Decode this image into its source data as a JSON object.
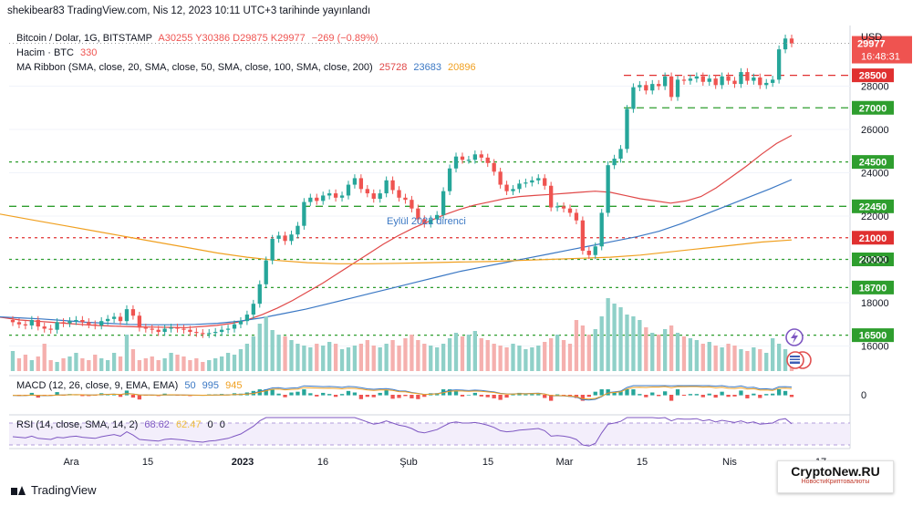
{
  "header": {
    "published": "shekibear83 TradingView.com, Nis 12, 2023 10:11 UTC+3 tarihinde yayınlandı"
  },
  "legend": {
    "symbol": "Bitcoin / Dolar, 1G, BITSTAMP",
    "ohlc": "A30255 Y30386 D29875 K29977",
    "change": "−269 (−0.89%)",
    "volume_label": "Hacim · BTC",
    "volume_value": "330",
    "ma_label": "MA Ribbon (SMA, close, 20, SMA, close, 50, SMA, close, 100, SMA, close, 200)",
    "ma_20": "25728",
    "ma_50": "23683",
    "ma_100": "20896",
    "macd_label": "MACD (12, 26, close, 9, EMA, EMA)",
    "macd_v1": "50",
    "macd_v2": "995",
    "macd_v3": "945",
    "rsi_label": "RSI (14, close, SMA, 14, 2)",
    "rsi_v1": "68.62",
    "rsi_v2": "62.47",
    "rsi_v3": "0",
    "rsi_v4": "0"
  },
  "axis": {
    "currency": "USD",
    "macd_zero": "0"
  },
  "annotation": "Eylül 2022 direnci",
  "footer": {
    "brand": "TradingView"
  },
  "watermark": {
    "site": "CryptoNew.RU",
    "tagline": "НовостиКриптовалюты"
  },
  "colors": {
    "up": "#26a69a",
    "down": "#ef5350",
    "ma20": "#e04848",
    "ma50": "#3b78c4",
    "ma100": "#f0a020",
    "level_green": "#2e9e2e",
    "level_red": "#e03030",
    "rsi": "#7e57c2"
  },
  "chart_data": {
    "type": "candlestick",
    "symbol": "Bitcoin / Dolar",
    "interval": "1G",
    "x_ticks": [
      "Ara",
      "15",
      "2023",
      "16",
      "Şub",
      "15",
      "Mar",
      "15",
      "Nis",
      "17"
    ],
    "y_ticks": [
      16000,
      18000,
      20000,
      22000,
      24000,
      26000,
      28000
    ],
    "ylim": [
      14800,
      30800
    ],
    "last_price": "29977",
    "countdown": "16:48:31",
    "levels": [
      {
        "value": 28500,
        "color": "red",
        "label": "28500"
      },
      {
        "value": 27000,
        "color": "green",
        "label": "27000"
      },
      {
        "value": 24500,
        "color": "green",
        "label": "24500"
      },
      {
        "value": 22450,
        "color": "green",
        "label": "22450"
      },
      {
        "value": 21000,
        "color": "red",
        "label": "21000"
      },
      {
        "value": 20000,
        "color": "green",
        "label": "20000"
      },
      {
        "value": 18700,
        "color": "green",
        "label": "18700"
      },
      {
        "value": 16500,
        "color": "green",
        "label": "16500"
      }
    ],
    "close_prices": [
      17100,
      17000,
      16950,
      17200,
      16900,
      16800,
      16750,
      17100,
      17050,
      17150,
      17200,
      17100,
      17000,
      16950,
      17150,
      17250,
      17350,
      17150,
      17700,
      17400,
      16850,
      16800,
      16750,
      16650,
      16800,
      16850,
      16800,
      16750,
      16650,
      16600,
      16550,
      16600,
      16650,
      16750,
      16800,
      17000,
      17150,
      17450,
      17950,
      18850,
      19950,
      20950,
      21100,
      20850,
      21150,
      21550,
      22650,
      22850,
      22700,
      22950,
      23050,
      22850,
      22950,
      23450,
      23750,
      23250,
      23050,
      22800,
      23050,
      23650,
      23200,
      22850,
      22750,
      22350,
      21850,
      21650,
      21850,
      22050,
      23150,
      24200,
      24750,
      24600,
      24600,
      24850,
      24700,
      24450,
      24050,
      23450,
      23150,
      23250,
      23500,
      23550,
      23650,
      23750,
      23400,
      22400,
      22450,
      22350,
      22150,
      21800,
      20400,
      20200,
      20600,
      22150,
      24350,
      24650,
      25100,
      26950,
      27950,
      28050,
      27800,
      28100,
      28000,
      28450,
      27500,
      28300,
      28250,
      28350,
      28450,
      28200,
      28350,
      28050,
      28450,
      28250,
      28100,
      28650,
      28250,
      28400,
      28050,
      28150,
      28300,
      29700,
      30200,
      29977
    ],
    "ma20": [
      17450,
      17400,
      17300,
      17200,
      17150,
      17100,
      17050,
      17000,
      16950,
      16920,
      16900,
      16880,
      16870,
      16860,
      16850,
      16900,
      16950,
      17050,
      17200,
      17450,
      17750,
      18100,
      18500,
      18900,
      19350,
      19800,
      20250,
      20700,
      21100,
      21450,
      21750,
      22050,
      22300,
      22500,
      22650,
      22800,
      22900,
      22950,
      23000,
      23050,
      23100,
      23150,
      23100,
      22950,
      22800,
      22700,
      22600,
      22700,
      22900,
      23300,
      23800,
      24300,
      24850,
      25350,
      25728
    ],
    "ma50": [
      17400,
      17350,
      17300,
      17250,
      17180,
      17100,
      17050,
      17000,
      16980,
      16980,
      17000,
      17050,
      17150,
      17300,
      17500,
      17700,
      17950,
      18200,
      18450,
      18700,
      18950,
      19200,
      19450,
      19650,
      19850,
      20050,
      20250,
      20450,
      20650,
      20850,
      21050,
      21300,
      21650,
      22050,
      22450,
      22850,
      23250,
      23683
    ],
    "ma100": [
      22300,
      22050,
      21800,
      21550,
      21300,
      21050,
      20800,
      20550,
      20300,
      20100,
      19950,
      19850,
      19800,
      19800,
      19820,
      19850,
      19880,
      19900,
      19950,
      20000,
      20050,
      20100,
      20200,
      20350,
      20500,
      20650,
      20800,
      20896
    ],
    "volume_heights": [
      22,
      14,
      18,
      12,
      16,
      30,
      12,
      10,
      14,
      16,
      20,
      14,
      12,
      18,
      14,
      12,
      20,
      16,
      40,
      24,
      12,
      14,
      16,
      12,
      14,
      20,
      18,
      16,
      12,
      14,
      10,
      12,
      14,
      16,
      20,
      18,
      24,
      30,
      38,
      52,
      60,
      45,
      40,
      38,
      34,
      30,
      28,
      26,
      30,
      28,
      32,
      30,
      24,
      26,
      28,
      30,
      34,
      28,
      26,
      30,
      34,
      28,
      36,
      40,
      34,
      30,
      28,
      26,
      30,
      36,
      42,
      38,
      40,
      44,
      36,
      34,
      30,
      28,
      26,
      30,
      28,
      24,
      26,
      28,
      32,
      36,
      40,
      34,
      30,
      56,
      50,
      40,
      46,
      60,
      80,
      74,
      70,
      62,
      60,
      56,
      48,
      42,
      40,
      46,
      50,
      42,
      38,
      36,
      34,
      30,
      32,
      28,
      26,
      30,
      28,
      24,
      22,
      26,
      24,
      20,
      36,
      30,
      24,
      18
    ],
    "rsi": [
      45,
      44,
      43,
      46,
      42,
      41,
      40,
      44,
      43,
      45,
      46,
      44,
      43,
      42,
      45,
      47,
      49,
      46,
      54,
      48,
      40,
      39,
      38,
      37,
      40,
      41,
      40,
      39,
      37,
      36,
      35,
      37,
      38,
      40,
      42,
      46,
      50,
      57,
      64,
      74,
      82,
      86,
      85,
      80,
      82,
      84,
      88,
      86,
      83,
      84,
      85,
      80,
      81,
      83,
      82,
      76,
      72,
      68,
      70,
      74,
      70,
      66,
      64,
      60,
      54,
      52,
      55,
      58,
      64,
      70,
      72,
      70,
      70,
      71,
      69,
      66,
      62,
      56,
      54,
      55,
      57,
      58,
      59,
      60,
      56,
      46,
      47,
      46,
      44,
      40,
      30,
      28,
      33,
      52,
      68,
      70,
      73,
      80,
      84,
      84,
      80,
      81,
      79,
      82,
      74,
      78,
      77,
      77,
      78,
      74,
      76,
      72,
      75,
      73,
      71,
      74,
      70,
      72,
      68,
      69,
      70,
      76,
      78,
      68.62
    ]
  }
}
